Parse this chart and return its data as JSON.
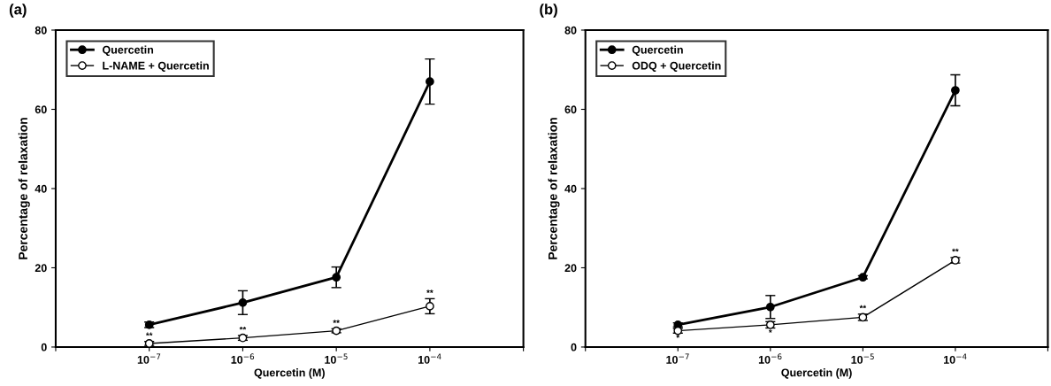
{
  "chart_data": [
    {
      "type": "line",
      "title": "(a)",
      "xlabel": "Quercetin (M)",
      "ylabel": "Percentage of relaxation",
      "log": "x",
      "grid": false,
      "legend": "top left",
      "marker": "circle",
      "line_style": "solid",
      "x": [
        1e-07,
        1e-06,
        1e-05,
        0.0001
      ],
      "xlim": [
        1e-08,
        0.001
      ],
      "xticks": [
        {
          "value": 1e-08,
          "label": null
        },
        {
          "value": 1e-07,
          "label": "10$^{−7}$"
        },
        {
          "value": 1e-06,
          "label": "10$^{−6}$"
        },
        {
          "value": 1e-05,
          "label": "10$^{−5}$"
        },
        {
          "value": 0.0001,
          "label": "10$^{−4}$"
        },
        {
          "value": 0.001,
          "label": null
        }
      ],
      "ylim": [
        0,
        80
      ],
      "yticks": [
        0,
        20,
        40,
        60,
        80
      ],
      "series": [
        {
          "name": "Quercetin",
          "color": "#000000",
          "values": [
            5.6,
            11.2,
            17.6,
            67.0
          ],
          "errors": [
            0.7,
            3.0,
            2.6,
            5.7
          ]
        },
        {
          "name": "L-NAME + Quercetin",
          "color": "#000000",
          "values": [
            0.9,
            2.3,
            4.1,
            10.3
          ],
          "errors": [
            0.5,
            0.6,
            0.5,
            1.9
          ]
        }
      ],
      "annotations": [
        {
          "text": "**",
          "x": 1e-07,
          "y": 0.9
        },
        {
          "text": "**",
          "x": 1e-06,
          "y": 2.3
        },
        {
          "text": "**",
          "x": 1e-05,
          "y": 4.1
        },
        {
          "text": "**",
          "x": 0.0001,
          "y": 10.3
        }
      ]
    },
    {
      "type": "line",
      "title": "(b)",
      "xlabel": "Quercetin (M)",
      "ylabel": "Percentage of relaxation",
      "log": "x",
      "grid": false,
      "legend": "top left",
      "marker": "circle",
      "line_style": "solid",
      "x": [
        1e-07,
        1e-06,
        1e-05,
        0.0001
      ],
      "xlim": [
        1e-08,
        0.001
      ],
      "xticks": [
        {
          "value": 1e-08,
          "label": null
        },
        {
          "value": 1e-07,
          "label": "10$^{−7}$"
        },
        {
          "value": 1e-06,
          "label": "10$^{−6}$"
        },
        {
          "value": 1e-05,
          "label": "10$^{−5}$"
        },
        {
          "value": 0.0001,
          "label": "10$^{−4}$"
        },
        {
          "value": 0.001,
          "label": null
        }
      ],
      "ylim": [
        0,
        80
      ],
      "yticks": [
        0,
        20,
        40,
        60,
        80
      ],
      "series": [
        {
          "name": "Quercetin",
          "color": "#000000",
          "values": [
            5.6,
            10.1,
            17.6,
            64.8
          ],
          "errors": [
            0.5,
            2.9,
            0.4,
            3.9
          ]
        },
        {
          "name": "ODQ + Quercetin",
          "color": "#000000",
          "values": [
            4.1,
            5.6,
            7.5,
            21.9
          ],
          "errors": [
            0.6,
            0.8,
            0.8,
            0.7
          ]
        }
      ],
      "annotations": [
        {
          "text": "*",
          "x": 1e-07,
          "y": 4.1
        },
        {
          "text": "*",
          "x": 1e-06,
          "y": 5.6
        },
        {
          "text": "**",
          "x": 1e-05,
          "y": 7.5
        },
        {
          "text": "**",
          "x": 0.0001,
          "y": 21.9
        }
      ]
    }
  ]
}
